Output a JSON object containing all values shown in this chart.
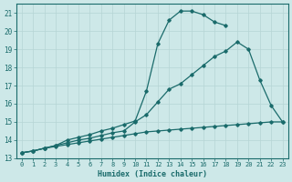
{
  "xlabel": "Humidex (Indice chaleur)",
  "ylabel": "",
  "bg_color": "#cde8e8",
  "grid_color": "#b5d5d5",
  "line_color": "#1a6b6b",
  "xlim": [
    -0.5,
    23.5
  ],
  "ylim": [
    13,
    21.5
  ],
  "yticks": [
    13,
    14,
    15,
    16,
    17,
    18,
    19,
    20,
    21
  ],
  "xticks": [
    0,
    1,
    2,
    3,
    4,
    5,
    6,
    7,
    8,
    9,
    10,
    11,
    12,
    13,
    14,
    15,
    16,
    17,
    18,
    19,
    20,
    21,
    22,
    23
  ],
  "series": [
    {
      "x": [
        0,
        1,
        2,
        3,
        4,
        5,
        6,
        7,
        8,
        9,
        10,
        11,
        12,
        13,
        14,
        15,
        16,
        17,
        18,
        19,
        20,
        21,
        22,
        23
      ],
      "y": [
        13.3,
        13.4,
        13.55,
        13.65,
        13.75,
        13.85,
        13.95,
        14.05,
        14.15,
        14.25,
        14.35,
        14.45,
        14.5,
        14.55,
        14.6,
        14.65,
        14.7,
        14.75,
        14.8,
        14.85,
        14.9,
        14.95,
        15.0,
        15.0
      ]
    },
    {
      "x": [
        0,
        1,
        2,
        3,
        4,
        5,
        6,
        7,
        8,
        9,
        10,
        11,
        12,
        13,
        14,
        15,
        16,
        17,
        18,
        19,
        20,
        21,
        22,
        23
      ],
      "y": [
        13.3,
        13.4,
        13.55,
        13.7,
        13.85,
        14.0,
        14.1,
        14.25,
        14.4,
        14.5,
        15.0,
        15.4,
        16.1,
        16.8,
        17.1,
        17.6,
        18.1,
        18.6,
        18.9,
        19.4,
        19.0,
        17.3,
        15.9,
        15.0
      ]
    },
    {
      "x": [
        0,
        1,
        2,
        3,
        4,
        5,
        6,
        7,
        8,
        9,
        10,
        11,
        12,
        13,
        14,
        15,
        16,
        17,
        18
      ],
      "y": [
        13.3,
        13.4,
        13.55,
        13.7,
        14.0,
        14.15,
        14.3,
        14.5,
        14.65,
        14.85,
        15.05,
        16.7,
        19.3,
        20.6,
        21.1,
        21.1,
        20.9,
        20.5,
        20.3
      ]
    }
  ]
}
